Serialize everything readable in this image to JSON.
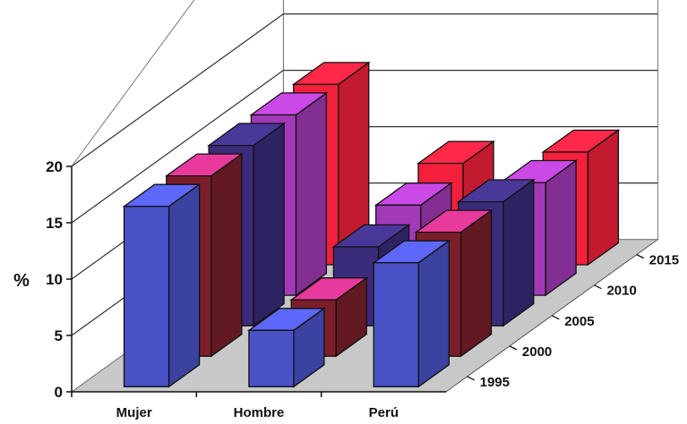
{
  "chart_data": {
    "type": "bar",
    "subtype": "3d-clustered-depth",
    "title": "",
    "ylabel": "%",
    "ylim": [
      0,
      20
    ],
    "yticks": [
      "0",
      "5",
      "10",
      "15",
      "20"
    ],
    "categories": [
      "Mujer",
      "Hombre",
      "Perú"
    ],
    "series": [
      {
        "name": "1995",
        "values": [
          16,
          5,
          11
        ]
      },
      {
        "name": "2000",
        "values": [
          16,
          5,
          11
        ]
      },
      {
        "name": "2005",
        "values": [
          16,
          7,
          11
        ]
      },
      {
        "name": "2010",
        "values": [
          16,
          8,
          10
        ]
      },
      {
        "name": "2015",
        "values": [
          16,
          9,
          10
        ]
      }
    ],
    "grid": true,
    "colors": {
      "1995": "#4a52c8",
      "2000": "#7a1f2a",
      "2005": "#3a2c7a",
      "2010": "#a23ab8",
      "2015": "#f2203a",
      "top_2000": "#e83a9c",
      "floor": "#c8c8c8",
      "wall": "#ffffff"
    }
  }
}
